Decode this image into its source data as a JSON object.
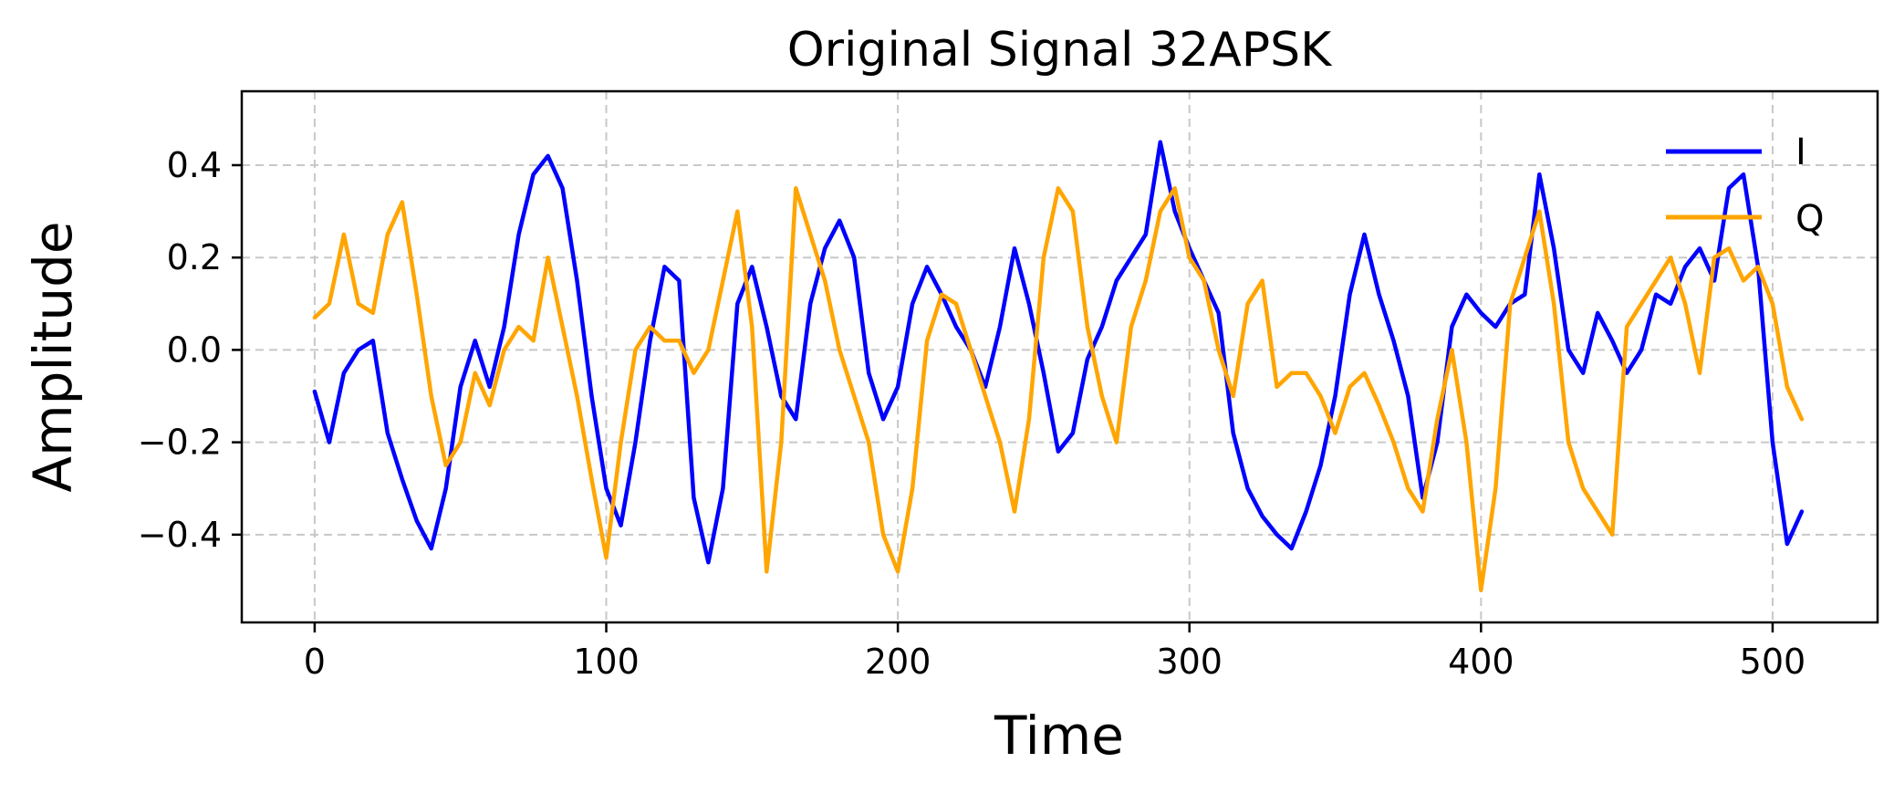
{
  "chart_data": {
    "type": "line",
    "title": "Original Signal 32APSK",
    "xlabel": "Time",
    "ylabel": "Amplitude",
    "xlim": [
      -25,
      536
    ],
    "ylim": [
      -0.59,
      0.56
    ],
    "xticks": [
      0,
      100,
      200,
      300,
      400,
      500
    ],
    "xtick_labels": [
      "0",
      "100",
      "200",
      "300",
      "400",
      "500"
    ],
    "yticks": [
      0.4,
      0.2,
      0.0,
      -0.2,
      -0.4
    ],
    "ytick_labels": [
      "0.4",
      "0.2",
      "0.0",
      "−0.2",
      "−0.4"
    ],
    "grid": true,
    "legend_position": "top-right",
    "colors": {
      "I": "#0000ff",
      "Q": "#ffa500"
    },
    "x": [
      0,
      5,
      10,
      15,
      20,
      25,
      30,
      35,
      40,
      45,
      50,
      55,
      60,
      65,
      70,
      75,
      80,
      85,
      90,
      95,
      100,
      105,
      110,
      115,
      120,
      125,
      130,
      135,
      140,
      145,
      150,
      155,
      160,
      165,
      170,
      175,
      180,
      185,
      190,
      195,
      200,
      205,
      210,
      215,
      220,
      225,
      230,
      235,
      240,
      245,
      250,
      255,
      260,
      265,
      270,
      275,
      280,
      285,
      290,
      295,
      300,
      305,
      310,
      315,
      320,
      325,
      330,
      335,
      340,
      345,
      350,
      355,
      360,
      365,
      370,
      375,
      380,
      385,
      390,
      395,
      400,
      405,
      410,
      415,
      420,
      425,
      430,
      435,
      440,
      445,
      450,
      455,
      460,
      465,
      470,
      475,
      480,
      485,
      490,
      495,
      500,
      505,
      510
    ],
    "series": [
      {
        "name": "I",
        "values": [
          -0.09,
          -0.2,
          -0.05,
          0.0,
          0.02,
          -0.18,
          -0.28,
          -0.37,
          -0.43,
          -0.3,
          -0.08,
          0.02,
          -0.08,
          0.05,
          0.25,
          0.38,
          0.42,
          0.35,
          0.15,
          -0.1,
          -0.3,
          -0.38,
          -0.2,
          0.02,
          0.18,
          0.15,
          -0.32,
          -0.46,
          -0.3,
          0.1,
          0.18,
          0.05,
          -0.1,
          -0.15,
          0.1,
          0.22,
          0.28,
          0.2,
          -0.05,
          -0.15,
          -0.08,
          0.1,
          0.18,
          0.12,
          0.05,
          0.0,
          -0.08,
          0.05,
          0.22,
          0.1,
          -0.05,
          -0.22,
          -0.18,
          -0.02,
          0.05,
          0.15,
          0.2,
          0.25,
          0.45,
          0.3,
          0.22,
          0.15,
          0.08,
          -0.18,
          -0.3,
          -0.36,
          -0.4,
          -0.43,
          -0.35,
          -0.25,
          -0.1,
          0.12,
          0.25,
          0.12,
          0.02,
          -0.1,
          -0.32,
          -0.2,
          0.05,
          0.12,
          0.08,
          0.05,
          0.1,
          0.12,
          0.38,
          0.22,
          0.0,
          -0.05,
          0.08,
          0.02,
          -0.05,
          0.0,
          0.12,
          0.1,
          0.18,
          0.22,
          0.15,
          0.35,
          0.38,
          0.18,
          -0.2,
          -0.42,
          -0.35
        ]
      },
      {
        "name": "Q",
        "values": [
          0.07,
          0.1,
          0.25,
          0.1,
          0.08,
          0.25,
          0.32,
          0.12,
          -0.1,
          -0.25,
          -0.2,
          -0.05,
          -0.12,
          0.0,
          0.05,
          0.02,
          0.2,
          0.05,
          -0.1,
          -0.28,
          -0.45,
          -0.2,
          0.0,
          0.05,
          0.02,
          0.02,
          -0.05,
          0.0,
          0.15,
          0.3,
          0.05,
          -0.48,
          -0.2,
          0.35,
          0.25,
          0.15,
          0.0,
          -0.1,
          -0.2,
          -0.4,
          -0.48,
          -0.3,
          0.02,
          0.12,
          0.1,
          0.0,
          -0.1,
          -0.2,
          -0.35,
          -0.15,
          0.2,
          0.35,
          0.3,
          0.05,
          -0.1,
          -0.2,
          0.05,
          0.15,
          0.3,
          0.35,
          0.2,
          0.15,
          0.0,
          -0.1,
          0.1,
          0.15,
          -0.08,
          -0.05,
          -0.05,
          -0.1,
          -0.18,
          -0.08,
          -0.05,
          -0.12,
          -0.2,
          -0.3,
          -0.35,
          -0.15,
          0.0,
          -0.2,
          -0.52,
          -0.3,
          0.1,
          0.2,
          0.3,
          0.1,
          -0.2,
          -0.3,
          -0.35,
          -0.4,
          0.05,
          0.1,
          0.15,
          0.2,
          0.1,
          -0.05,
          0.2,
          0.22,
          0.15,
          0.18,
          0.1,
          -0.08,
          -0.15
        ]
      }
    ]
  }
}
